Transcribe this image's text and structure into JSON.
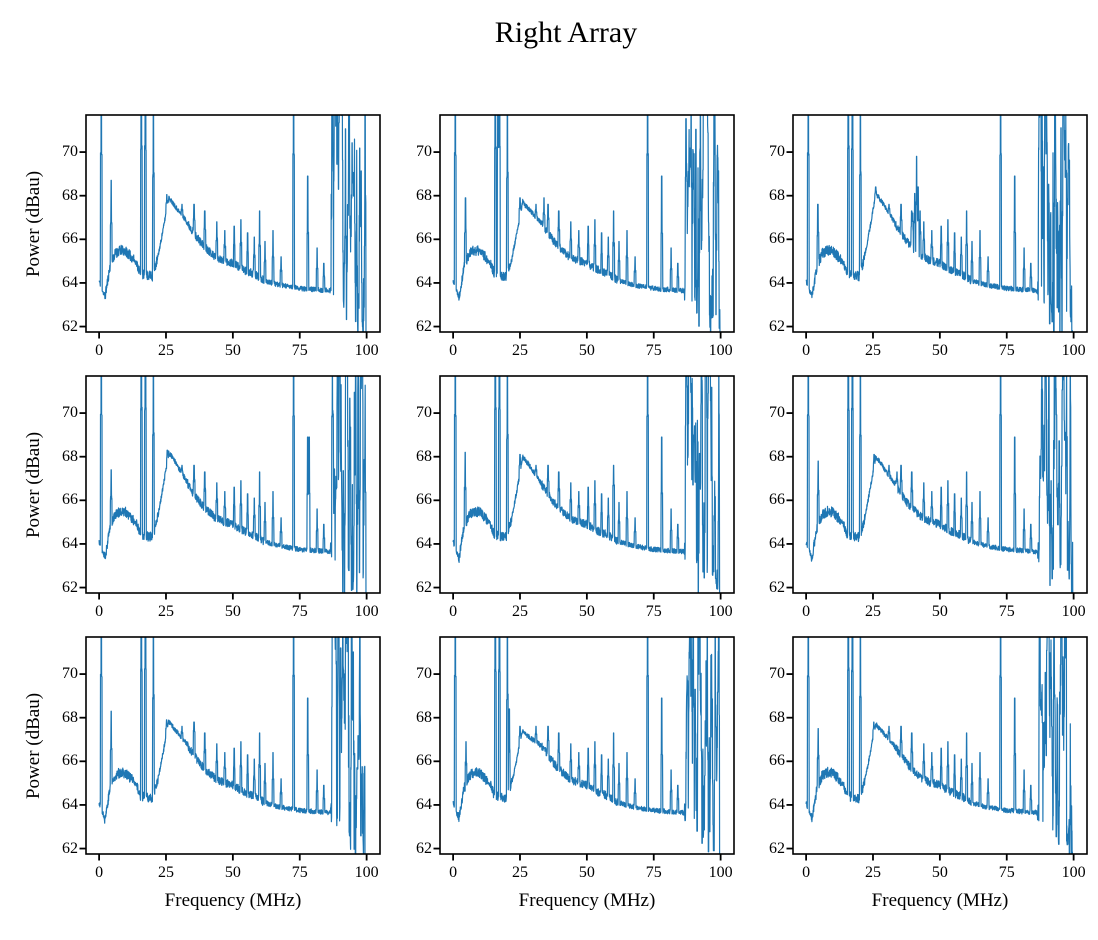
{
  "figure": {
    "background": "#ffffff",
    "text_color": "#000000"
  },
  "chart_data": {
    "type": "line",
    "title": "Right Array",
    "grid_layout": {
      "rows": 3,
      "cols": 3
    },
    "xlabel": "Frequency (MHz)",
    "ylabel": "Power (dBau)",
    "xlim": [
      -4.9,
      105
    ],
    "ylim": [
      61.75,
      71.7
    ],
    "xticks": [
      0,
      25,
      50,
      75,
      100
    ],
    "yticks": [
      62,
      64,
      66,
      68,
      70
    ],
    "grid": false,
    "legend": null,
    "line_color": "#1f77b4",
    "axis_color": "#000000",
    "n_points": 1300,
    "base_peak": 67.9,
    "baseline": [
      [
        0,
        64.1
      ],
      [
        2.2,
        63.35
      ],
      [
        4,
        64.7
      ],
      [
        6,
        65.35
      ],
      [
        8,
        65.5
      ],
      [
        10,
        65.45
      ],
      [
        12,
        65.2
      ],
      [
        14,
        64.9
      ],
      [
        15.5,
        64.4
      ],
      [
        18,
        64.35
      ],
      [
        20,
        64.3
      ],
      [
        22,
        65.2
      ],
      [
        24,
        66.5
      ],
      [
        26,
        67.9
      ],
      [
        28,
        67.6
      ],
      [
        30,
        67.25
      ],
      [
        32,
        66.95
      ],
      [
        34,
        66.55
      ],
      [
        36,
        66.2
      ],
      [
        38,
        65.85
      ],
      [
        40,
        65.6
      ],
      [
        43,
        65.25
      ],
      [
        46,
        65.05
      ],
      [
        50,
        64.9
      ],
      [
        54,
        64.6
      ],
      [
        58,
        64.4
      ],
      [
        62,
        64.1
      ],
      [
        66,
        63.95
      ],
      [
        70,
        63.85
      ],
      [
        75,
        63.75
      ],
      [
        80,
        63.7
      ],
      [
        86,
        63.65
      ],
      [
        90,
        63.45
      ],
      [
        94,
        63.15
      ],
      [
        97,
        62.8
      ],
      [
        99,
        62.2
      ],
      [
        99.6,
        61.3
      ],
      [
        100,
        60.6
      ]
    ],
    "noise_amp": 0.11,
    "noise_regions": [
      [
        2,
        13,
        2.1
      ],
      [
        14,
        22,
        2.0
      ],
      [
        33,
        62,
        1.7
      ],
      [
        86.5,
        100,
        4.2
      ]
    ],
    "spikes_common": [
      [
        0.8,
        76
      ],
      [
        15.8,
        76
      ],
      [
        17.3,
        76
      ],
      [
        20.3,
        73.5
      ],
      [
        31,
        67.6
      ],
      [
        35.5,
        67.6
      ],
      [
        39.5,
        67.3
      ],
      [
        44,
        66.8
      ],
      [
        47,
        66.4
      ],
      [
        50.5,
        66.6
      ],
      [
        53,
        66.9
      ],
      [
        55.5,
        66.3
      ],
      [
        58,
        66.1
      ],
      [
        60,
        67.3
      ],
      [
        62,
        65.9
      ],
      [
        65,
        66.4
      ],
      [
        68,
        65.2
      ],
      [
        72.7,
        76
      ],
      [
        78,
        68.9
      ],
      [
        81.5,
        65.6
      ],
      [
        84,
        64.9
      ]
    ],
    "cluster": {
      "x0": 87,
      "x1": 99.5,
      "count": 55,
      "top_min": 65.5,
      "top_max": 76,
      "down_count": 8,
      "down_min": 61.4,
      "down_max": 62.9,
      "down_x0": 91,
      "down_x1": 99.6
    },
    "subplots": [
      {
        "row": 1,
        "col": 1,
        "seed": 11,
        "peak": 67.9,
        "spikes": [
          [
            4.5,
            68.7
          ],
          [
            25.3,
            68.05
          ]
        ]
      },
      {
        "row": 1,
        "col": 2,
        "seed": 22,
        "peak": 67.7,
        "spikes": [
          [
            4.6,
            67.9
          ],
          [
            16.8,
            76
          ],
          [
            25,
            67.9
          ],
          [
            34,
            67.9
          ]
        ]
      },
      {
        "row": 1,
        "col": 3,
        "seed": 33,
        "peak": 68.1,
        "spikes": [
          [
            4.4,
            67.6
          ],
          [
            26,
            68.4
          ],
          [
            39.8,
            67.2
          ],
          [
            40.6,
            68.1
          ],
          [
            41.3,
            69.8
          ],
          [
            41.9,
            68.4
          ],
          [
            42.6,
            67.3
          ]
        ]
      },
      {
        "row": 2,
        "col": 1,
        "seed": 44,
        "peak": 68.2,
        "spikes": [
          [
            4.5,
            67.4
          ],
          [
            25.5,
            68.3
          ],
          [
            78.5,
            68.9
          ]
        ]
      },
      {
        "row": 2,
        "col": 2,
        "seed": 55,
        "peak": 68.0,
        "spikes": [
          [
            4.5,
            68.2
          ],
          [
            25,
            68.1
          ],
          [
            60,
            67.6
          ]
        ]
      },
      {
        "row": 2,
        "col": 3,
        "seed": 66,
        "peak": 68.0,
        "spikes": [
          [
            4.5,
            67.8
          ],
          [
            25.4,
            68.1
          ],
          [
            34,
            67.3
          ]
        ]
      },
      {
        "row": 3,
        "col": 1,
        "seed": 77,
        "peak": 67.8,
        "spikes": [
          [
            4.5,
            68.3
          ],
          [
            25.2,
            67.9
          ],
          [
            35.5,
            67.8
          ]
        ]
      },
      {
        "row": 3,
        "col": 2,
        "seed": 88,
        "peak": 67.4,
        "spikes": [
          [
            4.8,
            66.9
          ],
          [
            21,
            68.4
          ],
          [
            25,
            67.6
          ]
        ]
      },
      {
        "row": 3,
        "col": 3,
        "seed": 99,
        "peak": 67.7,
        "spikes": [
          [
            4.5,
            67.5
          ],
          [
            25.3,
            67.8
          ]
        ]
      }
    ]
  }
}
